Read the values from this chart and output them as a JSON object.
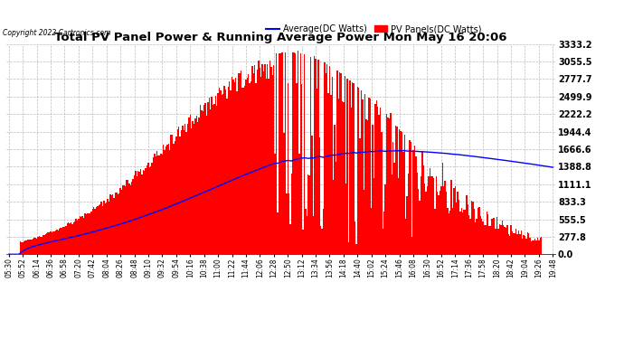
{
  "title": "Total PV Panel Power & Running Average Power Mon May 16 20:06",
  "copyright": "Copyright 2022 Cartronics.com",
  "legend_avg": "Average(DC Watts)",
  "legend_pv": "PV Panels(DC Watts)",
  "ylabel_right_ticks": [
    0.0,
    277.8,
    555.5,
    833.3,
    1111.1,
    1388.8,
    1666.6,
    1944.4,
    2222.2,
    2499.9,
    2777.7,
    3055.5,
    3333.2
  ],
  "ymax": 3333.2,
  "ymin": 0.0,
  "background_color": "#ffffff",
  "plot_bg_color": "#ffffff",
  "grid_color": "#bbbbbb",
  "bar_color": "#ff0000",
  "avg_line_color": "#0000ff",
  "x_labels": [
    "05:30",
    "05:52",
    "06:14",
    "06:36",
    "06:58",
    "07:20",
    "07:42",
    "08:04",
    "08:26",
    "08:48",
    "09:10",
    "09:32",
    "09:54",
    "10:16",
    "10:38",
    "11:00",
    "11:22",
    "11:44",
    "12:06",
    "12:28",
    "12:50",
    "13:12",
    "13:34",
    "13:56",
    "14:18",
    "14:40",
    "15:02",
    "15:24",
    "15:46",
    "16:08",
    "16:30",
    "16:52",
    "17:14",
    "17:36",
    "17:58",
    "18:20",
    "18:42",
    "19:04",
    "19:26",
    "19:48"
  ]
}
